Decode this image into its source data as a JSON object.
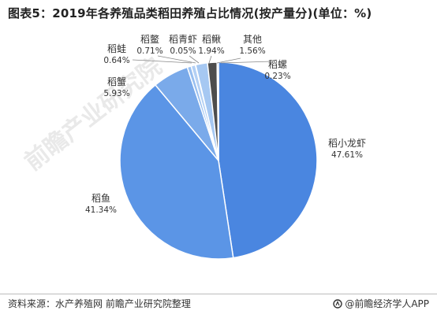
{
  "title": "图表5：2019年各养殖品类稻田养殖占比情况(按产量分)(单位：%)",
  "watermark_text": "前瞻产业研究院",
  "footer": {
    "source": "资料来源：水产养殖网 前瞻产业研究院整理",
    "brand": "@前瞻经济学人APP"
  },
  "colors": {
    "wedge_border": "#ffffff",
    "leader_line": "#888888",
    "label_text": "#333333",
    "watermark": "#e6e6e6"
  },
  "chart_data": {
    "type": "pie",
    "title": "图表5：2019年各养殖品类稻田养殖占比情况(按产量分)(单位：%)",
    "unit": "%",
    "slices": [
      {
        "label": "稻小龙虾",
        "value": 47.61,
        "value_label": "47.61%",
        "color": "#4a86e0"
      },
      {
        "label": "稻鱼",
        "value": 41.34,
        "value_label": "41.34%",
        "color": "#5b95e6"
      },
      {
        "label": "稻蟹",
        "value": 5.93,
        "value_label": "5.93%",
        "color": "#7aaaea"
      },
      {
        "label": "稻蛙",
        "value": 0.64,
        "value_label": "0.64%",
        "color": "#98bff0"
      },
      {
        "label": "稻鳖",
        "value": 0.71,
        "value_label": "0.71%",
        "color": "#b3d0f4"
      },
      {
        "label": "稻青虾",
        "value": 0.05,
        "value_label": "0.05%",
        "color": "#8fb6ea"
      },
      {
        "label": "稻鳅",
        "value": 1.94,
        "value_label": "1.94%",
        "color": "#a6c8f2"
      },
      {
        "label": "其他",
        "value": 1.56,
        "value_label": "1.56%",
        "color": "#4d4d4d"
      },
      {
        "label": "稻螺",
        "value": 0.23,
        "value_label": "0.23%",
        "color": "#6f9fe4"
      }
    ],
    "start_angle_deg": 0,
    "direction": "clockwise",
    "legend": "none"
  }
}
